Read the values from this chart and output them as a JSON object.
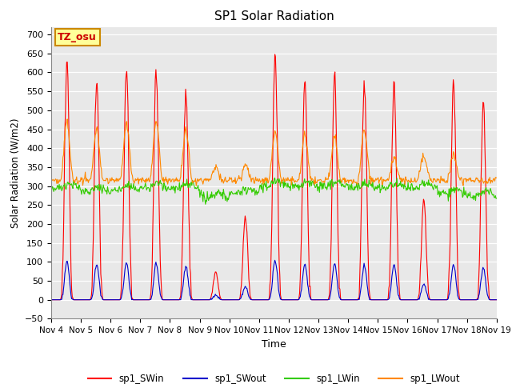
{
  "title": "SP1 Solar Radiation",
  "xlabel": "Time",
  "ylabel": "Solar Radiation (W/m2)",
  "ylim": [
    -50,
    720
  ],
  "yticks": [
    -50,
    0,
    50,
    100,
    150,
    200,
    250,
    300,
    350,
    400,
    450,
    500,
    550,
    600,
    650,
    700
  ],
  "xtick_labels": [
    "Nov 4",
    "Nov 5",
    "Nov 6",
    "Nov 7",
    "Nov 8",
    "Nov 9",
    "Nov 10",
    "Nov 11",
    "Nov 12",
    "Nov 13",
    "Nov 14",
    "Nov 15",
    "Nov 16",
    "Nov 17",
    "Nov 18",
    "Nov 19"
  ],
  "colors": {
    "SWin": "#ff0000",
    "SWout": "#0000cc",
    "LWin": "#33cc00",
    "LWout": "#ff8800"
  },
  "legend_labels": [
    "sp1_SWin",
    "sp1_SWout",
    "sp1_LWin",
    "sp1_LWout"
  ],
  "bg_color": "#e8e8e8",
  "annotation_text": "TZ_osu",
  "annotation_bg": "#ffff99",
  "annotation_border": "#cc8800",
  "n_days": 15,
  "hours_per_day": 48,
  "sw_peaks": [
    630,
    580,
    615,
    605,
    545,
    75,
    220,
    655,
    590,
    590,
    565,
    570,
    260,
    580,
    525
  ],
  "lwout_peaks": [
    465,
    450,
    465,
    470,
    445,
    350,
    355,
    440,
    435,
    430,
    445,
    375,
    380,
    385,
    315
  ],
  "lwin_bases": [
    295,
    285,
    290,
    295,
    295,
    270,
    280,
    300,
    300,
    300,
    295,
    295,
    295,
    280,
    275
  ]
}
